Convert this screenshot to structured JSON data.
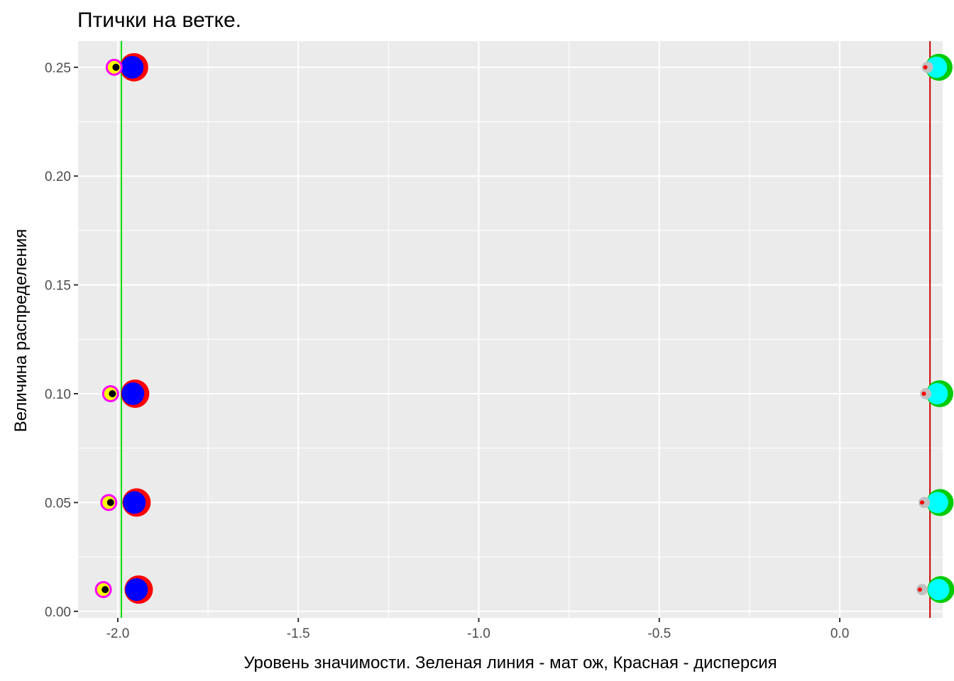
{
  "chart_data": {
    "type": "scatter",
    "title": "Птички на ветке.",
    "xlabel": "Уровень значимости. Зеленая линия - мат ож, Красная - дисперсия",
    "ylabel": "Величина распределения",
    "xlim": [
      -2.11,
      0.285
    ],
    "ylim": [
      -0.003,
      0.262
    ],
    "x_ticks": [
      {
        "value": -2.0,
        "label": "-2.0"
      },
      {
        "value": -1.5,
        "label": "-1.5"
      },
      {
        "value": -1.0,
        "label": "-1.0"
      },
      {
        "value": -0.5,
        "label": "-0.5"
      },
      {
        "value": 0.0,
        "label": "0.0"
      }
    ],
    "y_ticks": [
      {
        "value": 0.0,
        "label": "0.00"
      },
      {
        "value": 0.05,
        "label": "0.05"
      },
      {
        "value": 0.1,
        "label": "0.10"
      },
      {
        "value": 0.15,
        "label": "0.15"
      },
      {
        "value": 0.2,
        "label": "0.20"
      },
      {
        "value": 0.25,
        "label": "0.25"
      }
    ],
    "background": "#ebebeb",
    "grid": true,
    "vlines": [
      {
        "x": -1.99,
        "color": "#00e000"
      },
      {
        "x": 0.25,
        "color": "#cc0000"
      }
    ],
    "series": [
      {
        "fill": "#ff0000",
        "r": 20,
        "points": [
          {
            "x": -1.955,
            "y": 0.25
          },
          {
            "x": -1.952,
            "y": 0.1
          },
          {
            "x": -1.948,
            "y": 0.05
          },
          {
            "x": -1.942,
            "y": 0.01
          }
        ]
      },
      {
        "fill": "#0000ff",
        "r": 16,
        "points": [
          {
            "x": -1.96,
            "y": 0.25
          },
          {
            "x": -1.958,
            "y": 0.1
          },
          {
            "x": -1.954,
            "y": 0.05
          },
          {
            "x": -1.948,
            "y": 0.01
          }
        ]
      },
      {
        "fill": "#00cc00",
        "r": 19,
        "points": [
          {
            "x": 0.275,
            "y": 0.25
          },
          {
            "x": 0.277,
            "y": 0.1
          },
          {
            "x": 0.278,
            "y": 0.05
          },
          {
            "x": 0.28,
            "y": 0.01
          }
        ]
      },
      {
        "fill": "#00ffff",
        "r": 15,
        "points": [
          {
            "x": 0.268,
            "y": 0.25
          },
          {
            "x": 0.27,
            "y": 0.1
          },
          {
            "x": 0.271,
            "y": 0.05
          },
          {
            "x": 0.274,
            "y": 0.01
          }
        ]
      },
      {
        "fill": "#c0c0c0",
        "r": 8,
        "points": [
          {
            "x": 0.243,
            "y": 0.25
          },
          {
            "x": 0.238,
            "y": 0.1
          },
          {
            "x": 0.234,
            "y": 0.05
          },
          {
            "x": 0.228,
            "y": 0.01
          }
        ]
      },
      {
        "fill": "#ff0000",
        "r": 3,
        "points": [
          {
            "x": 0.237,
            "y": 0.25
          },
          {
            "x": 0.233,
            "y": 0.1
          },
          {
            "x": 0.228,
            "y": 0.05
          },
          {
            "x": 0.222,
            "y": 0.01
          }
        ]
      },
      {
        "fill": "#ff00ff",
        "r": 12,
        "points": [
          {
            "x": -2.01,
            "y": 0.25
          },
          {
            "x": -2.02,
            "y": 0.1
          },
          {
            "x": -2.025,
            "y": 0.05
          },
          {
            "x": -2.04,
            "y": 0.01
          }
        ]
      },
      {
        "fill": "#ffff00",
        "r": 9,
        "points": [
          {
            "x": -2.01,
            "y": 0.25
          },
          {
            "x": -2.02,
            "y": 0.1
          },
          {
            "x": -2.025,
            "y": 0.05
          },
          {
            "x": -2.04,
            "y": 0.01
          }
        ]
      },
      {
        "fill": "#000000",
        "r": 5,
        "points": [
          {
            "x": -2.005,
            "y": 0.25
          },
          {
            "x": -2.015,
            "y": 0.1
          },
          {
            "x": -2.02,
            "y": 0.05
          },
          {
            "x": -2.035,
            "y": 0.01
          }
        ]
      }
    ]
  }
}
